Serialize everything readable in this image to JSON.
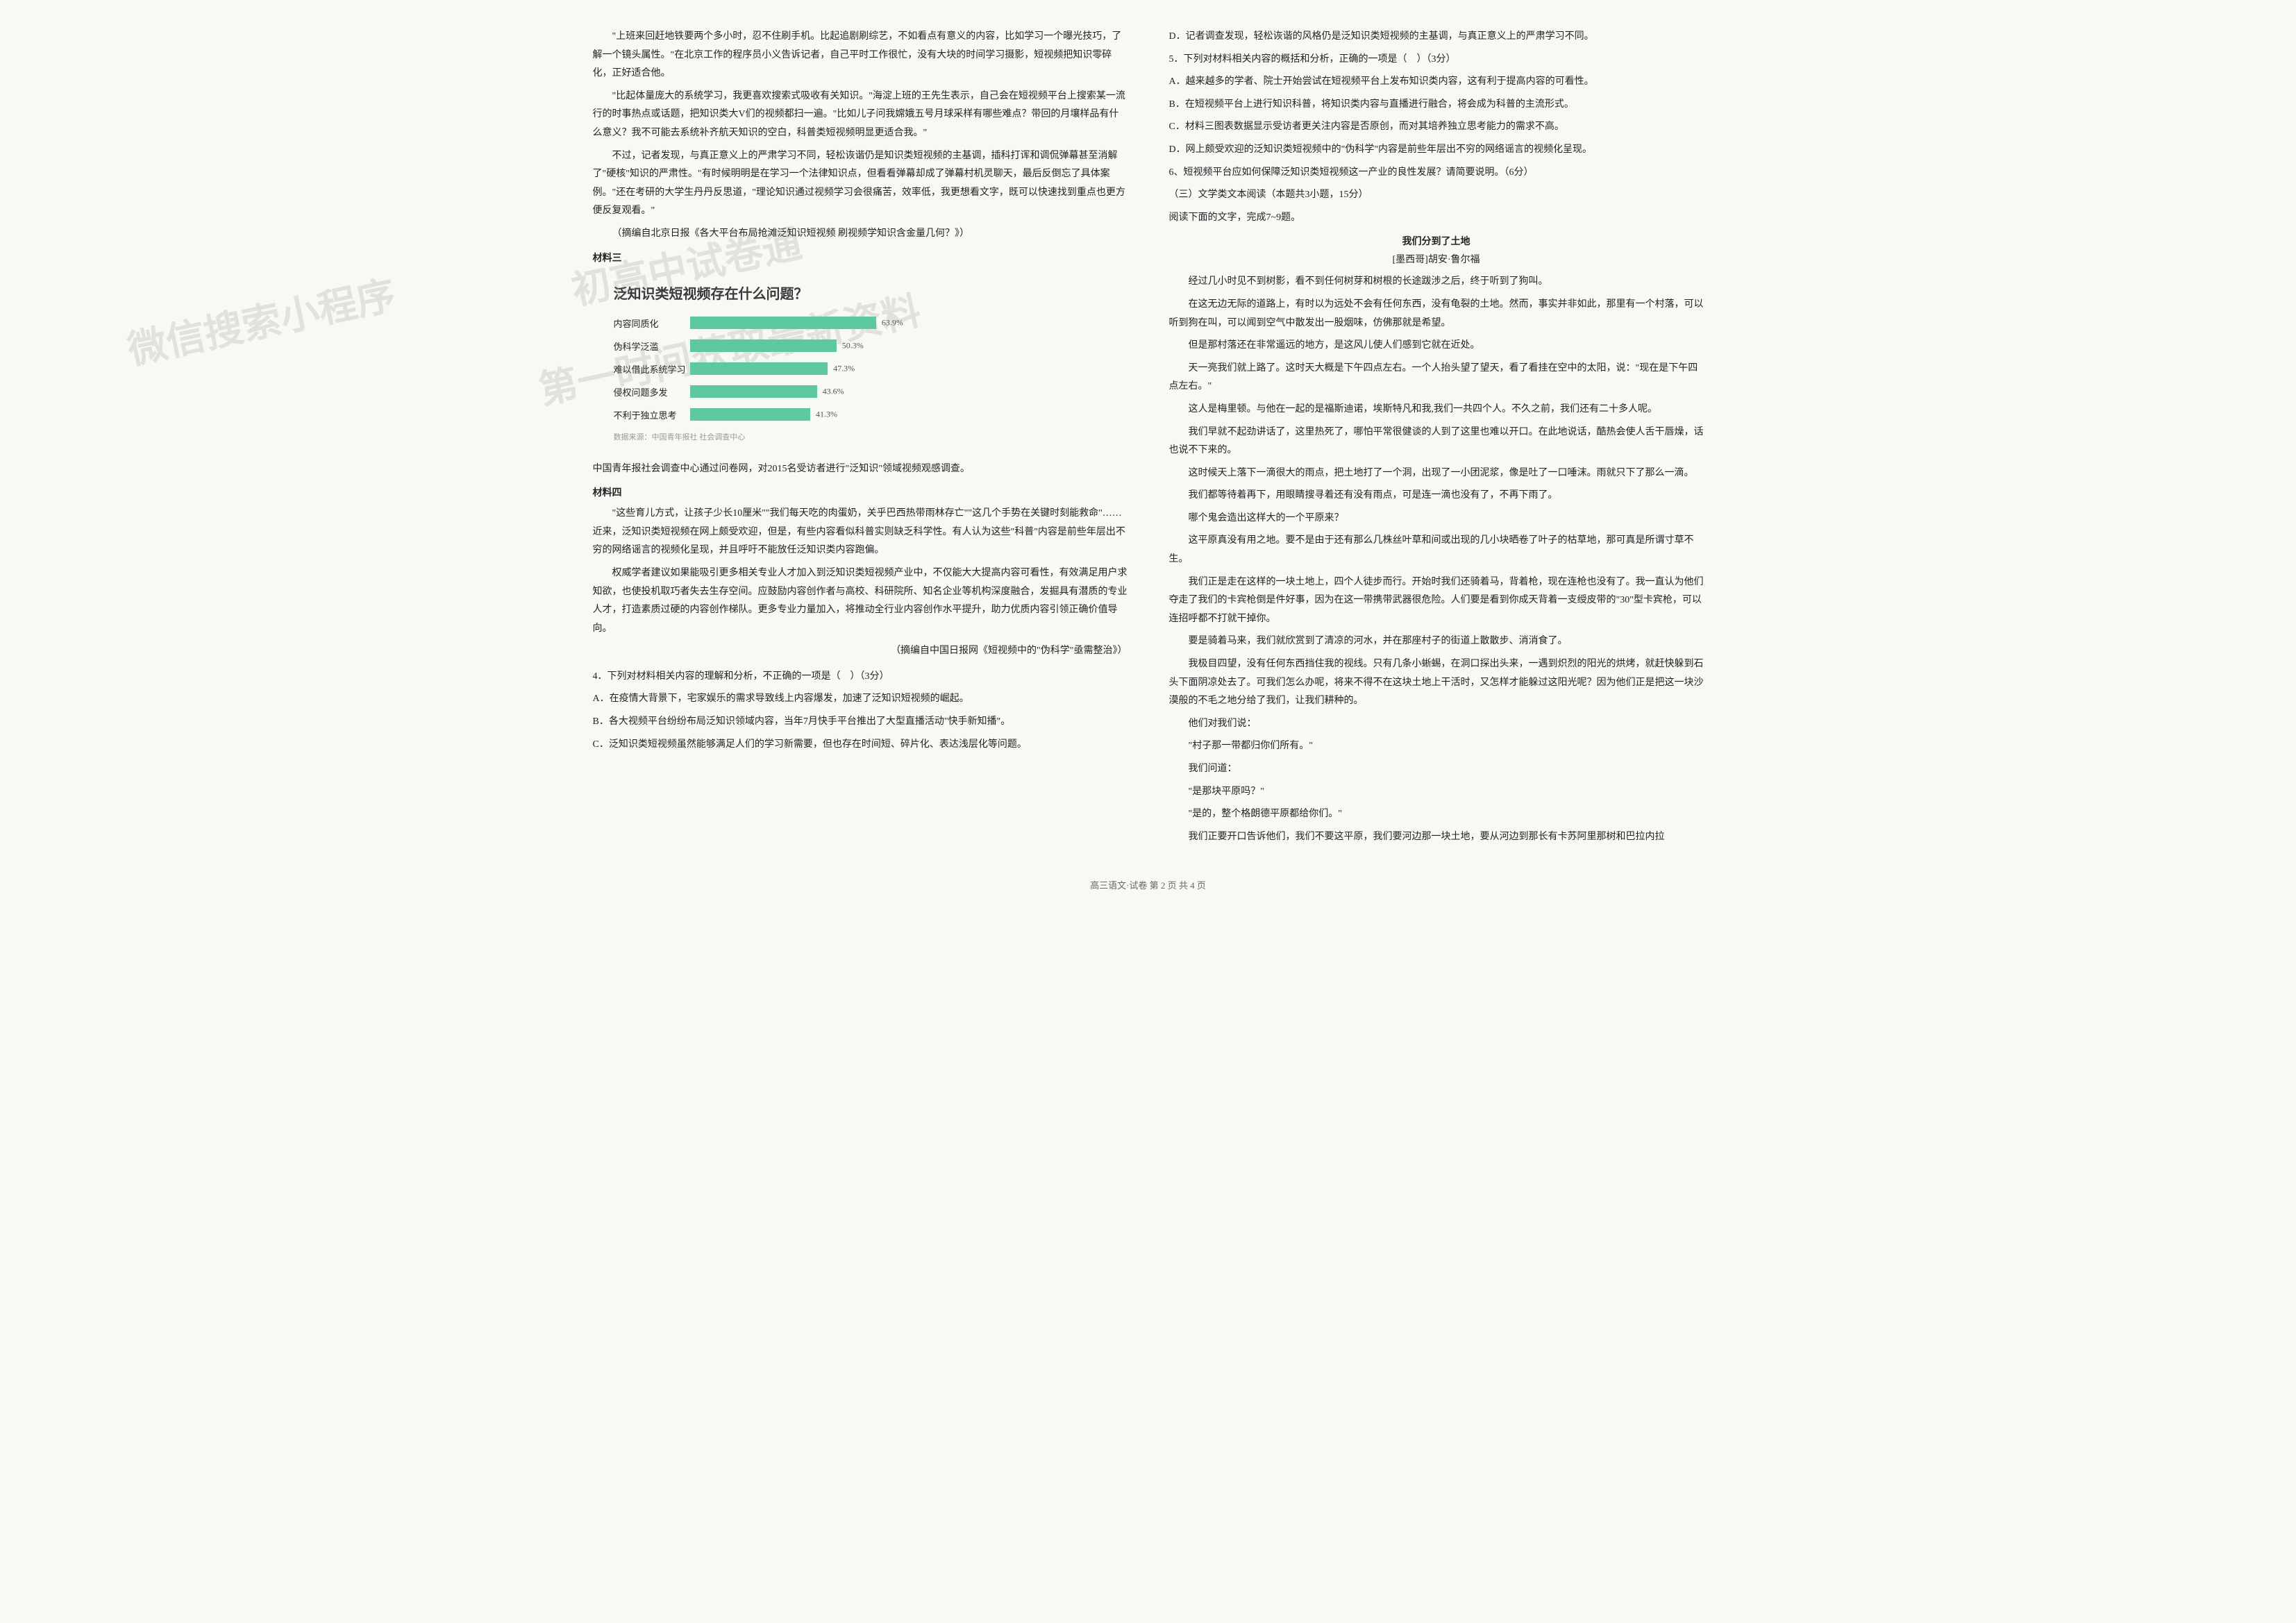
{
  "left": {
    "paragraphs_top": [
      "\"上班来回赶地铁要两个多小时，忍不住刷手机。比起追剧刷综艺，不如看点有意义的内容，比如学习一个曝光技巧，了解一个镜头属性。\"在北京工作的程序员小义告诉记者，自己平时工作很忙，没有大块的时间学习摄影，短视频把知识零碎化，正好适合他。",
      "\"比起体量庞大的系统学习，我更喜欢搜索式吸收有关知识。\"海淀上班的王先生表示，自己会在短视频平台上搜索某一流行的时事热点或话题，把知识类大V们的视频都扫一遍。\"比如儿子问我嫦娥五号月球采样有哪些难点？带回的月壤样品有什么意义？我不可能去系统补齐航天知识的空白，科普类短视频明显更适合我。\"",
      "不过，记者发现，与真正意义上的严肃学习不同，轻松诙谐仍是知识类短视频的主基调，插科打诨和调侃弹幕甚至消解了\"硬核\"知识的严肃性。\"有时候明明是在学习一个法律知识点，但看看弹幕却成了弹幕村机灵聊天，最后反倒忘了具体案例。\"还在考研的大学生丹丹反思道，\"理论知识通过视频学习会很痛苦，效率低，我更想看文字，既可以快速找到重点也更方便反复观看。\""
    ],
    "source1": "（摘编自北京日报《各大平台布局抢滩泛知识短视频 刷视频学知识含金量几何？》）",
    "material3_label": "材料三",
    "chart": {
      "title": "泛知识类短视频存在什么问题？",
      "bars": [
        {
          "label": "内容同质化",
          "value": 63.9,
          "text": "63.9%"
        },
        {
          "label": "伪科学泛滥",
          "value": 50.3,
          "text": "50.3%"
        },
        {
          "label": "难以借此系统学习",
          "value": 47.3,
          "text": "47.3%"
        },
        {
          "label": "侵权问题多发",
          "value": 43.6,
          "text": "43.6%"
        },
        {
          "label": "不利于独立思考",
          "value": 41.3,
          "text": "41.3%"
        }
      ],
      "bar_color": "#5ec9a0",
      "max_value": 100,
      "footer": "数据来源：中国青年报社 社会调查中心"
    },
    "chart_caption": "中国青年报社会调查中心通过问卷网，对2015名受访者进行\"泛知识\"领域视频观感调查。",
    "material4_label": "材料四",
    "material4_paragraphs": [
      "\"这些育儿方式，让孩子少长10厘米\"\"我们每天吃的肉蛋奶，关乎巴西热带雨林存亡\"\"这几个手势在关键时刻能救命\"……近来，泛知识类短视频在网上颇受欢迎，但是，有些内容看似科普实则缺乏科学性。有人认为这些\"科普\"内容是前些年层出不穷的网络谣言的视频化呈现，并且呼吁不能放任泛知识类内容跑偏。",
      "权威学者建议如果能吸引更多相关专业人才加入到泛知识类短视频产业中，不仅能大大提高内容可看性，有效满足用户求知欲，也使投机取巧者失去生存空间。应鼓励内容创作者与高校、科研院所、知名企业等机构深度融合，发掘具有潜质的专业人才，打造素质过硬的内容创作梯队。更多专业力量加入，将推动全行业内容创作水平提升，助力优质内容引领正确价值导向。"
    ],
    "source2": "（摘编自中国日报网《短视频中的\"伪科学\"亟需整治》）",
    "q4": "4．下列对材料相关内容的理解和分析，不正确的一项是（　）（3分）",
    "q4_options": [
      "A．在疫情大背景下，宅家娱乐的需求导致线上内容爆发，加速了泛知识短视频的崛起。",
      "B．各大视频平台纷纷布局泛知识领域内容，当年7月快手平台推出了大型直播活动\"快手新知播\"。",
      "C．泛知识类短视频虽然能够满足人们的学习新需要，但也存在时间短、碎片化、表达浅层化等问题。"
    ]
  },
  "right": {
    "q4_d": "D．记者调查发现，轻松诙谐的风格仍是泛知识类短视频的主基调，与真正意义上的严肃学习不同。",
    "q5": "5．下列对材料相关内容的概括和分析，正确的一项是（　）（3分）",
    "q5_options": [
      "A．越来越多的学者、院士开始尝试在短视频平台上发布知识类内容，这有利于提高内容的可看性。",
      "B．在短视频平台上进行知识科普，将知识类内容与直播进行融合，将会成为科普的主流形式。",
      "C．材料三图表数据显示受访者更关注内容是否原创，而对其培养独立思考能力的需求不高。",
      "D．网上颇受欢迎的泛知识类短视频中的\"伪科学\"内容是前些年层出不穷的网络谣言的视频化呈现。"
    ],
    "q6": "6、短视频平台应如何保障泛知识类短视频这一产业的良性发展？请简要说明。（6分）",
    "section3": "（三）文学类文本阅读（本题共3小题，15分）",
    "instruction": "阅读下面的文字，完成7~9题。",
    "story_title": "我们分到了土地",
    "story_author": "[墨西哥]胡安·鲁尔福",
    "story_paragraphs": [
      "经过几小时见不到树影，看不到任何树芽和树根的长途跋涉之后，终于听到了狗叫。",
      "在这无边无际的道路上，有时以为远处不会有任何东西，没有龟裂的土地。然而，事实并非如此，那里有一个村落，可以听到狗在叫，可以闻到空气中散发出一股烟味，仿佛那就是希望。",
      "但是那村落还在非常遥远的地方，是这风儿使人们感到它就在近处。",
      "天一亮我们就上路了。这时天大概是下午四点左右。一个人抬头望了望天，看了看挂在空中的太阳，说：\"现在是下午四点左右。\"",
      "这人是梅里顿。与他在一起的是福斯迪诺，埃斯特凡和我,我们一共四个人。不久之前，我们还有二十多人呢。",
      "我们早就不起劲讲话了，这里热死了，哪怕平常很健谈的人到了这里也难以开口。在此地说话，酷热会使人舌干唇燥，话也说不下来的。",
      "这时候天上落下一滴很大的雨点，把土地打了一个洞，出现了一小团泥浆，像是吐了一口唾沫。雨就只下了那么一滴。",
      "我们都等待着再下，用眼睛搜寻着还有没有雨点，可是连一滴也没有了，不再下雨了。",
      "哪个鬼会造出这样大的一个平原来？",
      "这平原真没有用之地。要不是由于还有那么几株丝叶草和间或出现的几小块晒卷了叶子的枯草地，那可真是所谓寸草不生。",
      "我们正是走在这样的一块土地上，四个人徒步而行。开始时我们还骑着马，背着枪，现在连枪也没有了。我一直认为他们夺走了我们的卡宾枪倒是件好事，因为在这一带携带武器很危险。人们要是看到你成天背着一支绶皮带的\"30\"型卡宾枪，可以连招呼都不打就干掉你。",
      "要是骑着马来，我们就欣赏到了清凉的河水，并在那座村子的街道上散散步、消消食了。",
      "我极目四望，没有任何东西挡住我的视线。只有几条小蜥蜴，在洞口探出头来，一遇到炽烈的阳光的烘烤，就赶快躲到石头下面阴凉处去了。可我们怎么办呢，将来不得不在这块土地上干活时，又怎样才能躲过这阳光呢？因为他们正是把这一块沙漠般的不毛之地分给了我们，让我们耕种的。",
      "他们对我们说：",
      "\"村子那一带都归你们所有。\"",
      "我们问道：",
      "\"是那块平原吗？\"",
      "\"是的，整个格朗德平原都给你们。\"",
      "我们正要开口告诉他们，我们不要这平原，我们要河边那一块土地，要从河边到那长有卡苏阿里那树和巴拉内拉"
    ]
  },
  "footer": "高三语文·试卷 第 2 页 共 4 页",
  "watermarks": {
    "wm1": "微信搜索小程序",
    "wm2": "初高中试卷通",
    "wm3": "第一时间获取最新资料"
  }
}
